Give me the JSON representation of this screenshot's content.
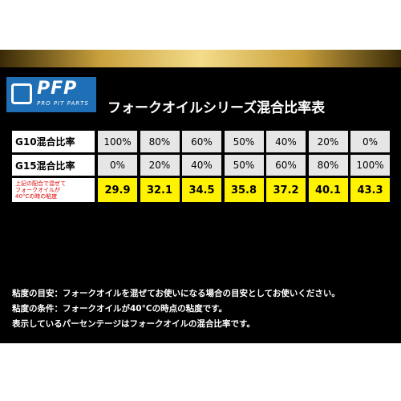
{
  "logo": {
    "mark": "PFP",
    "name": "PRO PIT PARTS"
  },
  "title": "フォークオイルシリーズ混合比率表",
  "table": {
    "rows": [
      {
        "label": [
          "G10混合比率"
        ],
        "cells": [
          "100%",
          "80%",
          "60%",
          "50%",
          "40%",
          "20%",
          "0%"
        ]
      },
      {
        "label": [
          "G15混合比率"
        ],
        "cells": [
          "0%",
          "20%",
          "40%",
          "50%",
          "60%",
          "80%",
          "100%"
        ]
      },
      {
        "label": [
          "上記の配合で混ぜて",
          "フォークオイルが",
          "40°Cの時の粘度"
        ],
        "cells": [
          "29.9",
          "32.1",
          "34.5",
          "35.8",
          "37.2",
          "40.1",
          "43.3"
        ]
      }
    ]
  },
  "notes": [
    "粘度の目安：フォークオイルを混ぜてお使いになる場合の目安としてお使いください。",
    "粘度の条件：フォークオイルが40°Cの時点の粘度です。",
    "表示しているパーセンテージはフォークオイルの混合比率です。"
  ]
}
